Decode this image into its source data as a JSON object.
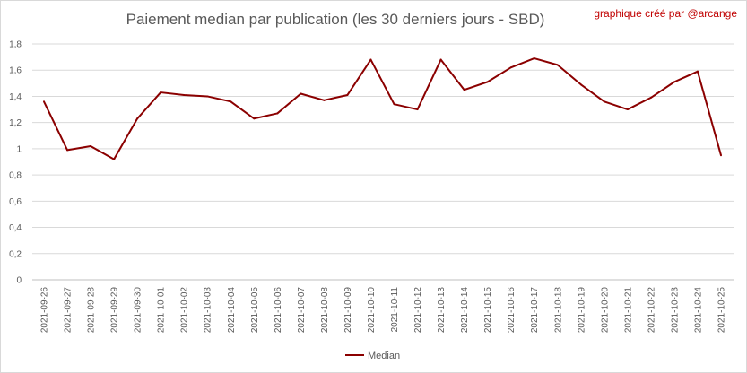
{
  "chart_data": {
    "type": "line",
    "title": "Paiement median par publication (les 30 derniers jours - SBD)",
    "annotation": "graphique créé par @arcange",
    "xlabel": "",
    "ylabel": "",
    "ylim": [
      0,
      1.8
    ],
    "yticks": [
      "0",
      "0,2",
      "0,4",
      "0,6",
      "0,8",
      "1",
      "1,2",
      "1,4",
      "1,6",
      "1,8"
    ],
    "grid": true,
    "legend_position": "bottom",
    "categories": [
      "2021-09-26",
      "2021-09-27",
      "2021-09-28",
      "2021-09-29",
      "2021-09-30",
      "2021-10-01",
      "2021-10-02",
      "2021-10-03",
      "2021-10-04",
      "2021-10-05",
      "2021-10-06",
      "2021-10-07",
      "2021-10-08",
      "2021-10-09",
      "2021-10-10",
      "2021-10-11",
      "2021-10-12",
      "2021-10-13",
      "2021-10-14",
      "2021-10-15",
      "2021-10-16",
      "2021-10-17",
      "2021-10-18",
      "2021-10-19",
      "2021-10-20",
      "2021-10-21",
      "2021-10-22",
      "2021-10-23",
      "2021-10-24",
      "2021-10-25"
    ],
    "series": [
      {
        "name": "Median",
        "color": "#8b0000",
        "values": [
          1.36,
          0.99,
          1.02,
          0.92,
          1.23,
          1.43,
          1.41,
          1.4,
          1.36,
          1.23,
          1.27,
          1.42,
          1.37,
          1.41,
          1.68,
          1.34,
          1.3,
          1.68,
          1.45,
          1.51,
          1.62,
          1.69,
          1.64,
          1.49,
          1.36,
          1.3,
          1.39,
          1.51,
          1.59,
          0.95
        ]
      }
    ]
  }
}
